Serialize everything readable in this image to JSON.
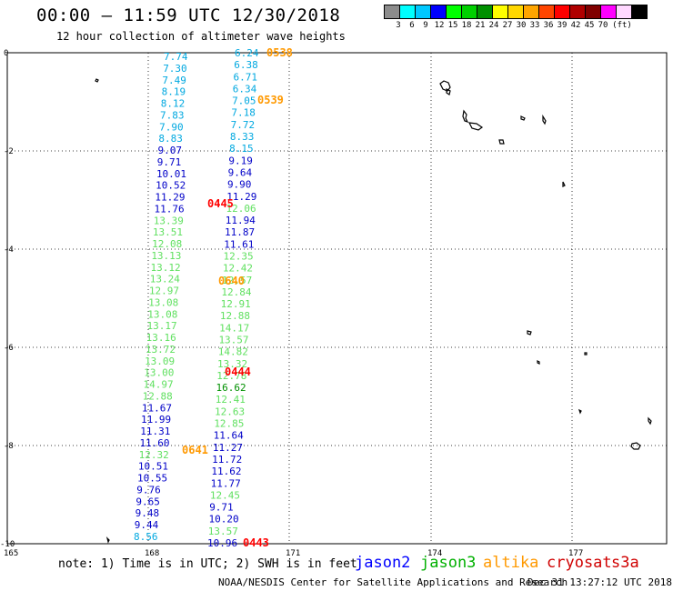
{
  "header": {
    "title": "00:00 – 11:59 UTC 12/30/2018",
    "subtitle": "12 hour collection of altimeter wave heights"
  },
  "color_scale": {
    "unit_label": "(ft)",
    "labels": [
      "3",
      "6",
      "9",
      "12",
      "15",
      "18",
      "21",
      "24",
      "27",
      "30",
      "33",
      "36",
      "39",
      "42",
      "45",
      "70"
    ],
    "colors": [
      "#8c8c8c",
      "#00ffff",
      "#00c8ff",
      "#0000ff",
      "#00ff00",
      "#00d000",
      "#009000",
      "#ffff00",
      "#ffd700",
      "#ffa500",
      "#ff4500",
      "#ff0000",
      "#b00000",
      "#800000",
      "#ff00ff",
      "#ffd8ff",
      "#000000"
    ]
  },
  "axes": {
    "x_ticks": [
      "165",
      "168",
      "171",
      "174",
      "177"
    ],
    "y_ticks": [
      "0",
      "-2",
      "-4",
      "-6",
      "-8",
      "-10"
    ]
  },
  "observations": {
    "left_track": [
      {
        "v": "7.74",
        "c": "#00a8e0"
      },
      {
        "v": "7.30",
        "c": "#00a8e0"
      },
      {
        "v": "7.49",
        "c": "#00a8e0"
      },
      {
        "v": "8.19",
        "c": "#00a8e0"
      },
      {
        "v": "8.12",
        "c": "#00a8e0"
      },
      {
        "v": "7.83",
        "c": "#00a8e0"
      },
      {
        "v": "7.90",
        "c": "#00a8e0"
      },
      {
        "v": "8.83",
        "c": "#00a8e0"
      },
      {
        "v": "9.07",
        "c": "#0000c8"
      },
      {
        "v": "9.71",
        "c": "#0000c8"
      },
      {
        "v": "10.01",
        "c": "#0000c8"
      },
      {
        "v": "10.52",
        "c": "#0000c8"
      },
      {
        "v": "11.29",
        "c": "#0000c8"
      },
      {
        "v": "11.76",
        "c": "#0000c8"
      },
      {
        "v": "13.39",
        "c": "#60e060"
      },
      {
        "v": "13.51",
        "c": "#60e060"
      },
      {
        "v": "12.08",
        "c": "#60e060"
      },
      {
        "v": "13.13",
        "c": "#60e060"
      },
      {
        "v": "13.12",
        "c": "#60e060"
      },
      {
        "v": "13.24",
        "c": "#60e060"
      },
      {
        "v": "12.97",
        "c": "#60e060"
      },
      {
        "v": "13.08",
        "c": "#60e060"
      },
      {
        "v": "13.08",
        "c": "#60e060"
      },
      {
        "v": "13.17",
        "c": "#60e060"
      },
      {
        "v": "13.16",
        "c": "#60e060"
      },
      {
        "v": "13.72",
        "c": "#60e060"
      },
      {
        "v": "13.09",
        "c": "#60e060"
      },
      {
        "v": "13.00",
        "c": "#60e060"
      },
      {
        "v": "14.97",
        "c": "#60e060"
      },
      {
        "v": "12.88",
        "c": "#60e060"
      },
      {
        "v": "11.67",
        "c": "#0000c8"
      },
      {
        "v": "11.99",
        "c": "#0000c8"
      },
      {
        "v": "11.31",
        "c": "#0000c8"
      },
      {
        "v": "11.60",
        "c": "#0000c8"
      },
      {
        "v": "12.32",
        "c": "#60e060"
      },
      {
        "v": "10.51",
        "c": "#0000c8"
      },
      {
        "v": "10.55",
        "c": "#0000c8"
      },
      {
        "v": "9.76",
        "c": "#0000c8"
      },
      {
        "v": "9.65",
        "c": "#0000c8"
      },
      {
        "v": "9.48",
        "c": "#0000c8"
      },
      {
        "v": "9.44",
        "c": "#0000c8"
      },
      {
        "v": "8.56",
        "c": "#00a8e0"
      }
    ],
    "right_track": [
      {
        "v": "6.24",
        "c": "#00a8e0"
      },
      {
        "v": "6.38",
        "c": "#00a8e0"
      },
      {
        "v": "6.71",
        "c": "#00a8e0"
      },
      {
        "v": "6.34",
        "c": "#00a8e0"
      },
      {
        "v": "7.05",
        "c": "#00a8e0"
      },
      {
        "v": "7.18",
        "c": "#00a8e0"
      },
      {
        "v": "7.72",
        "c": "#00a8e0"
      },
      {
        "v": "8.33",
        "c": "#00a8e0"
      },
      {
        "v": "8.15",
        "c": "#00a8e0"
      },
      {
        "v": "9.19",
        "c": "#0000c8"
      },
      {
        "v": "9.64",
        "c": "#0000c8"
      },
      {
        "v": "9.90",
        "c": "#0000c8"
      },
      {
        "v": "11.29",
        "c": "#0000c8"
      },
      {
        "v": "12.06",
        "c": "#60e060"
      },
      {
        "v": "11.94",
        "c": "#0000c8"
      },
      {
        "v": "11.87",
        "c": "#0000c8"
      },
      {
        "v": "11.61",
        "c": "#0000c8"
      },
      {
        "v": "12.35",
        "c": "#60e060"
      },
      {
        "v": "12.42",
        "c": "#60e060"
      },
      {
        "v": "12.57",
        "c": "#60e060"
      },
      {
        "v": "12.84",
        "c": "#60e060"
      },
      {
        "v": "12.91",
        "c": "#60e060"
      },
      {
        "v": "12.88",
        "c": "#60e060"
      },
      {
        "v": "14.17",
        "c": "#60e060"
      },
      {
        "v": "13.57",
        "c": "#60e060"
      },
      {
        "v": "14.82",
        "c": "#60e060"
      },
      {
        "v": "13.32",
        "c": "#60e060"
      },
      {
        "v": "12.78",
        "c": "#60e060"
      },
      {
        "v": "16.62",
        "c": "#009000"
      },
      {
        "v": "12.41",
        "c": "#60e060"
      },
      {
        "v": "12.63",
        "c": "#60e060"
      },
      {
        "v": "12.85",
        "c": "#60e060"
      },
      {
        "v": "11.64",
        "c": "#0000c8"
      },
      {
        "v": "11.27",
        "c": "#0000c8"
      },
      {
        "v": "11.72",
        "c": "#0000c8"
      },
      {
        "v": "11.62",
        "c": "#0000c8"
      },
      {
        "v": "11.77",
        "c": "#0000c8"
      },
      {
        "v": "12.45",
        "c": "#60e060"
      },
      {
        "v": "9.71",
        "c": "#0000c8"
      },
      {
        "v": "10.20",
        "c": "#0000c8"
      },
      {
        "v": "13.57",
        "c": "#60e060"
      },
      {
        "v": "10.96",
        "c": "#0000c8"
      }
    ],
    "time_labels": [
      {
        "t": "0538",
        "c": "#ff9900"
      },
      {
        "t": "0539",
        "c": "#ff9900"
      },
      {
        "t": "0445",
        "c": "#ff0000"
      },
      {
        "t": "0640",
        "c": "#ff9900"
      },
      {
        "t": "0444",
        "c": "#ff0000"
      },
      {
        "t": "0641",
        "c": "#ff9900"
      },
      {
        "t": "0443",
        "c": "#ff0000"
      }
    ]
  },
  "footer": {
    "note": "note: 1) Time is in UTC; 2) SWH is in feet",
    "legend": [
      {
        "name": "jason2",
        "color": "#0000ff"
      },
      {
        "name": "jason3",
        "color": "#00b000"
      },
      {
        "name": "altika",
        "color": "#ff9900"
      },
      {
        "name": "cryosat",
        "color": "#d00000"
      },
      {
        "name": "s3a",
        "color": "#d00000"
      }
    ],
    "credit": "NOAA/NESDIS Center for Satellite Applications and Research",
    "timestamp": "Dec 31 13:27:12 UTC 2018"
  }
}
